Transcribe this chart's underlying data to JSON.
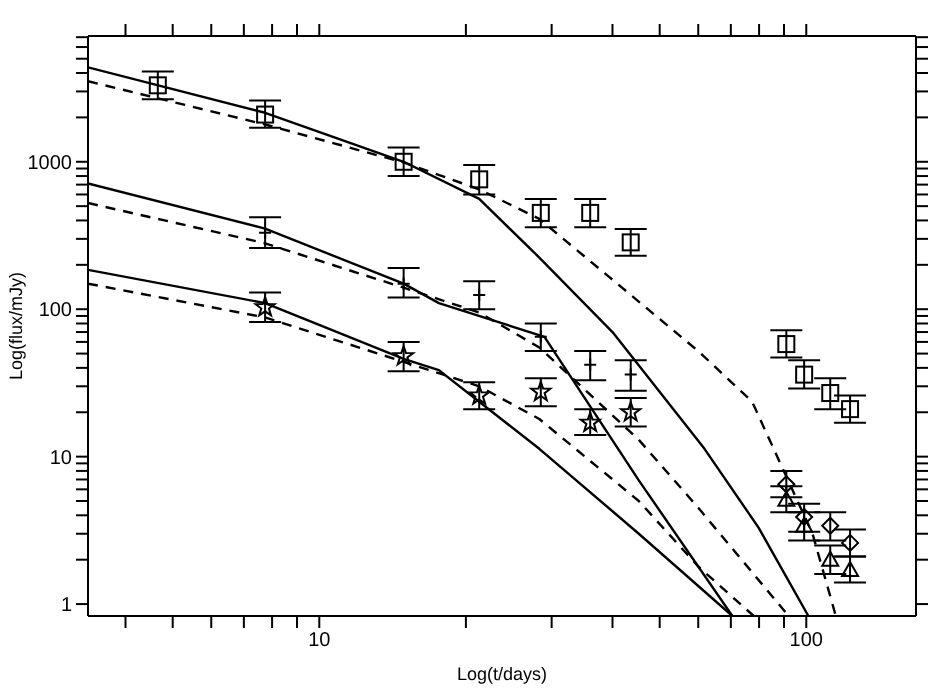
{
  "chart_data": {
    "type": "scatter",
    "xlabel": "Log(t/days)",
    "ylabel": "Log(flux/mJy)",
    "log": "xy",
    "grid": false,
    "legend": false,
    "xlim": [
      3.35,
      168
    ],
    "ylim": [
      0.83,
      7130
    ],
    "xticks": [
      {
        "value": 4,
        "label": null
      },
      {
        "value": 5,
        "label": null
      },
      {
        "value": 6,
        "label": null
      },
      {
        "value": 7,
        "label": null
      },
      {
        "value": 8,
        "label": null
      },
      {
        "value": 9,
        "label": null
      },
      10,
      {
        "value": 20,
        "label": null
      },
      {
        "value": 30,
        "label": null
      },
      {
        "value": 40,
        "label": null
      },
      {
        "value": 50,
        "label": null
      },
      {
        "value": 60,
        "label": null
      },
      {
        "value": 70,
        "label": null
      },
      {
        "value": 80,
        "label": null
      },
      {
        "value": 90,
        "label": null
      },
      100
    ],
    "yticks": [
      1,
      {
        "value": 2,
        "label": null
      },
      {
        "value": 3,
        "label": null
      },
      {
        "value": 4,
        "label": null
      },
      {
        "value": 5,
        "label": null
      },
      {
        "value": 6,
        "label": null
      },
      {
        "value": 7,
        "label": null
      },
      {
        "value": 8,
        "label": null
      },
      {
        "value": 9,
        "label": null
      },
      10,
      {
        "value": 20,
        "label": null
      },
      {
        "value": 30,
        "label": null
      },
      {
        "value": 40,
        "label": null
      },
      {
        "value": 50,
        "label": null
      },
      {
        "value": 60,
        "label": null
      },
      {
        "value": 70,
        "label": null
      },
      {
        "value": 80,
        "label": null
      },
      {
        "value": 90,
        "label": null
      },
      100,
      {
        "value": 200,
        "label": null
      },
      {
        "value": 300,
        "label": null
      },
      {
        "value": 400,
        "label": null
      },
      {
        "value": 500,
        "label": null
      },
      {
        "value": 600,
        "label": null
      },
      {
        "value": 700,
        "label": null
      },
      {
        "value": 800,
        "label": null
      },
      {
        "value": 900,
        "label": null
      },
      1000,
      {
        "value": 2000,
        "label": null
      },
      {
        "value": 3000,
        "label": null
      },
      {
        "value": 4000,
        "label": null
      },
      {
        "value": 5000,
        "label": null
      },
      {
        "value": 6000,
        "label": null
      },
      {
        "value": 7000,
        "label": null
      }
    ],
    "series": [
      {
        "type": "line",
        "color": "#000000",
        "line_style": "solid",
        "x": [
          3.35,
          7.74,
          14.9,
          21.3,
          28.3,
          40,
          61.8,
          79.8,
          101
        ],
        "values": [
          4370,
          2150,
          1000,
          560,
          224,
          70,
          11.3,
          3.3,
          0.83
        ]
      },
      {
        "type": "line",
        "color": "#000000",
        "line_style": "dashed",
        "x": [
          3.35,
          7.74,
          14.9,
          21.3,
          28.3,
          60,
          77.4,
          103,
          115
        ],
        "values": [
          3520,
          1790,
          990,
          650,
          410,
          52,
          23.6,
          3.0,
          0.83
        ]
      },
      {
        "type": "line",
        "color": "#000000",
        "line_style": "solid",
        "x": [
          3.35,
          7.74,
          14.9,
          17.6,
          29,
          45.3,
          70.5
        ],
        "values": [
          713,
          352,
          149,
          110,
          65,
          6.9,
          0.83
        ]
      },
      {
        "type": "line",
        "color": "#000000",
        "line_style": "dashed",
        "x": [
          3.35,
          7.74,
          14.9,
          21.3,
          28.3,
          45.3,
          60,
          92
        ],
        "values": [
          525,
          280,
          140,
          95,
          55,
          13,
          4.5,
          0.83
        ]
      },
      {
        "type": "line",
        "color": "#000000",
        "line_style": "solid",
        "x": [
          3.35,
          7.74,
          14.9,
          17.6,
          28.3,
          45.3,
          70.5
        ],
        "values": [
          185,
          110,
          46,
          38.6,
          11.3,
          3.0,
          0.83
        ]
      },
      {
        "type": "line",
        "color": "#000000",
        "line_style": "dashed",
        "x": [
          3.35,
          7.74,
          14.9,
          21.3,
          28.3,
          45.3,
          60,
          78
        ],
        "values": [
          149,
          88,
          44,
          30,
          18,
          5,
          1.8,
          0.83
        ]
      },
      {
        "type": "scatter",
        "color": "#000000",
        "marker": "square",
        "x": [
          4.66,
          7.74,
          14.9,
          21.3,
          28.5,
          36,
          43.6,
          91,
          99,
          112,
          123
        ],
        "values": [
          3300,
          2090,
          1000,
          760,
          450,
          450,
          284,
          58,
          36,
          27,
          21
        ],
        "errors": [
          [
            2650,
            4100
          ],
          [
            1700,
            2600
          ],
          [
            800,
            1250
          ],
          [
            600,
            950
          ],
          [
            360,
            560
          ],
          [
            360,
            560
          ],
          [
            230,
            350
          ],
          [
            47,
            72
          ],
          [
            29,
            45
          ],
          [
            21,
            34
          ],
          [
            17,
            26
          ]
        ]
      },
      {
        "type": "scatter",
        "color": "#000000",
        "marker": "cross",
        "x": [
          7.74,
          14.9,
          21.3,
          28.5,
          36,
          43.6
        ],
        "values": [
          330,
          149,
          125,
          65,
          42,
          36
        ],
        "errors": [
          [
            260,
            420
          ],
          [
            120,
            190
          ],
          [
            100,
            155
          ],
          [
            52,
            80
          ],
          [
            33,
            52
          ],
          [
            28,
            45
          ]
        ]
      },
      {
        "type": "scatter",
        "color": "#000000",
        "marker": "star",
        "x": [
          7.74,
          14.9,
          21.3,
          28.5,
          36,
          43.6
        ],
        "values": [
          103,
          48,
          26,
          27.5,
          17,
          20
        ],
        "errors": [
          [
            82,
            130
          ],
          [
            38,
            60
          ],
          [
            21,
            32
          ],
          [
            22,
            34
          ],
          [
            14,
            21
          ],
          [
            16,
            25
          ]
        ]
      },
      {
        "type": "scatter",
        "color": "#000000",
        "marker": "diamond",
        "x": [
          91,
          99,
          112,
          123
        ],
        "values": [
          6.5,
          3.9,
          3.4,
          2.6
        ],
        "errors": [
          [
            5.3,
            8
          ],
          [
            3.1,
            4.8
          ],
          [
            2.7,
            4.2
          ],
          [
            2.1,
            3.2
          ]
        ]
      },
      {
        "type": "scatter",
        "color": "#000000",
        "marker": "triangle",
        "x": [
          91,
          99,
          112,
          123
        ],
        "values": [
          5.1,
          3.4,
          2.0,
          1.7
        ],
        "errors": [
          [
            4.2,
            6.3
          ],
          [
            2.7,
            4.2
          ],
          [
            1.6,
            2.5
          ],
          [
            1.4,
            2.1
          ]
        ]
      }
    ]
  }
}
